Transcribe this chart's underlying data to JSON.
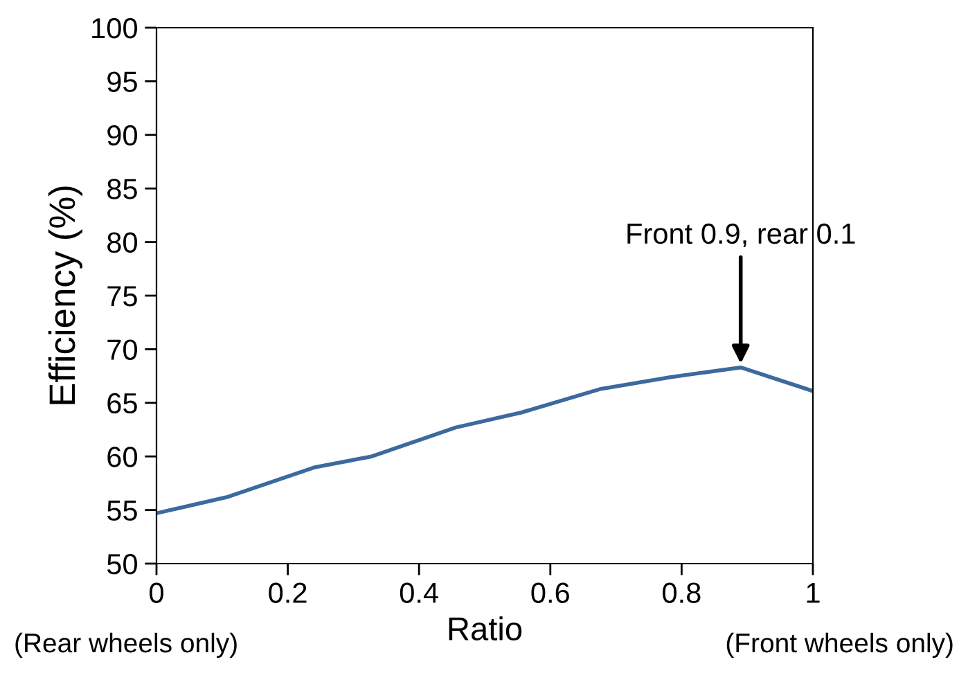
{
  "chart_data": {
    "type": "line",
    "xlabel": "Ratio",
    "ylabel": "Efficiency (%)",
    "x": [
      0,
      0.107,
      0.242,
      0.328,
      0.456,
      0.556,
      0.677,
      0.783,
      0.89,
      1
    ],
    "series": [
      {
        "color": "#3d6a9e",
        "values": [
          54.7,
          56.2,
          59.0,
          60.0,
          62.7,
          64.1,
          66.3,
          67.4,
          68.3,
          66.1
        ]
      }
    ],
    "xlim": [
      0,
      1
    ],
    "xticks": [
      0,
      0.2,
      0.4,
      0.6,
      0.8,
      1
    ],
    "ylim": [
      50,
      100
    ],
    "yticks": [
      50,
      55,
      60,
      65,
      70,
      75,
      80,
      85,
      90,
      95,
      100
    ],
    "grid": false,
    "legend": false,
    "marker": "none",
    "line_style": "solid",
    "annotations": [
      {
        "text": "Front 0.9, rear 0.1",
        "x": 0.89,
        "y": 68.3
      },
      "(Rear wheels only)",
      "(Front wheels only)"
    ]
  }
}
